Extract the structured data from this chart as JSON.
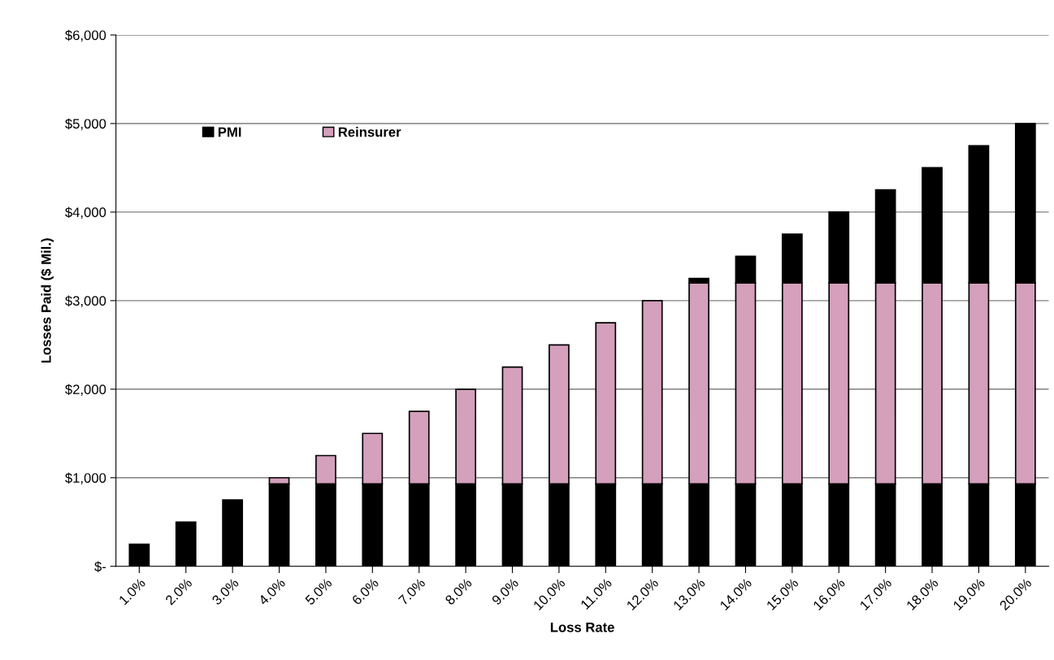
{
  "chart_data": {
    "type": "bar",
    "stacked": true,
    "xlabel": "Loss Rate",
    "ylabel": "Losses Paid ($ Mil.)",
    "categories": [
      "1.0%",
      "2.0%",
      "3.0%",
      "4.0%",
      "5.0%",
      "6.0%",
      "7.0%",
      "8.0%",
      "9.0%",
      "10.0%",
      "11.0%",
      "12.0%",
      "13.0%",
      "14.0%",
      "15.0%",
      "16.0%",
      "17.0%",
      "18.0%",
      "19.0%",
      "20.0%"
    ],
    "series": [
      {
        "name": "PMI",
        "color": "#000000",
        "values": [
          250,
          500,
          750,
          930,
          930,
          930,
          930,
          930,
          930,
          930,
          930,
          930,
          930,
          930,
          930,
          930,
          930,
          930,
          930,
          930
        ]
      },
      {
        "name": "Reinsurer",
        "color": "#d4a0bc",
        "values": [
          null,
          null,
          null,
          70,
          320,
          570,
          820,
          1070,
          1320,
          1570,
          1820,
          2070,
          2270,
          2270,
          2270,
          2270,
          2270,
          2270,
          2270,
          2270
        ]
      },
      {
        "color": "#000000",
        "values": [
          null,
          null,
          null,
          null,
          null,
          null,
          null,
          null,
          null,
          null,
          null,
          null,
          50,
          300,
          550,
          800,
          1050,
          1300,
          1550,
          1800
        ]
      }
    ],
    "ylim": [
      0,
      6000
    ],
    "yticks": [
      {
        "value": 0,
        "label": "$-"
      },
      {
        "value": 1000,
        "label": "$1,000"
      },
      {
        "value": 2000,
        "label": "$2,000"
      },
      {
        "value": 3000,
        "label": "$3,000"
      },
      {
        "value": 4000,
        "label": "$4,000"
      },
      {
        "value": 5000,
        "label": "$5,000"
      },
      {
        "value": 6000,
        "label": "$6,000"
      }
    ],
    "grid": "y",
    "legend": "top left"
  }
}
